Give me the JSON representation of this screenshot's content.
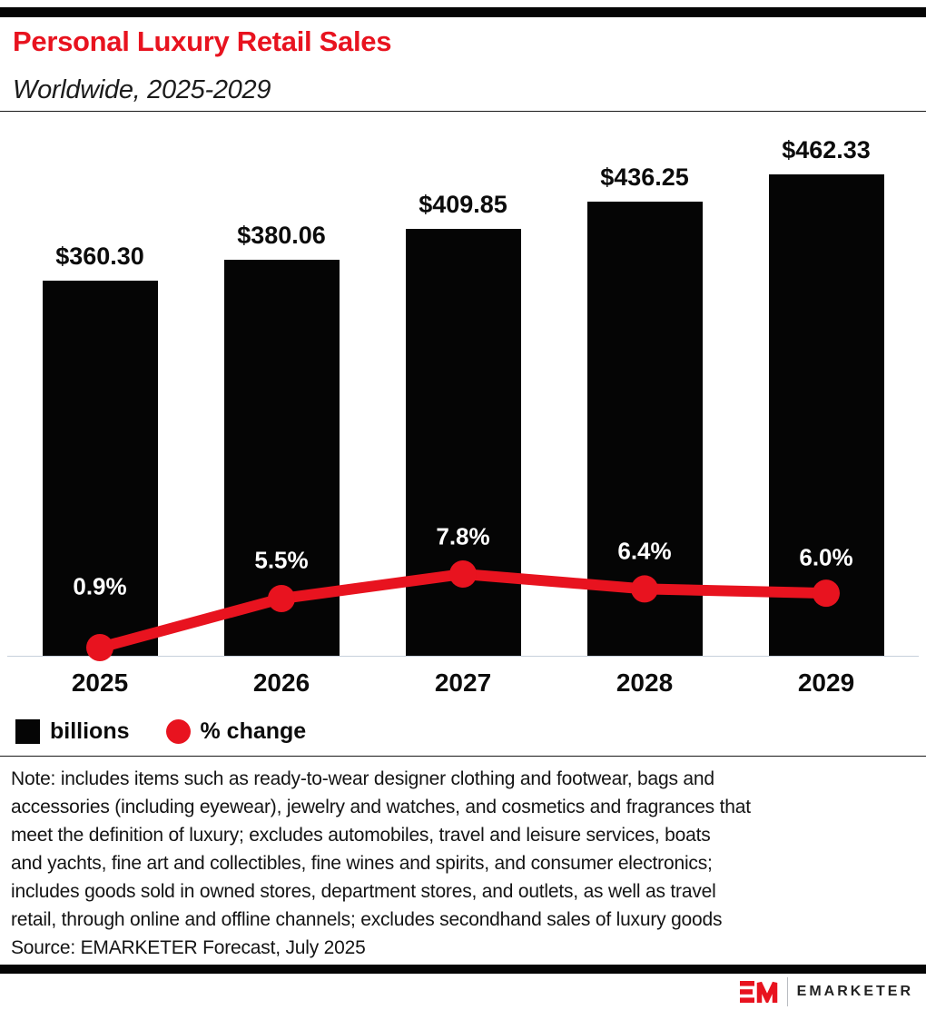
{
  "header": {
    "title": "Personal Luxury Retail Sales",
    "subtitle": "Worldwide, 2025-2029"
  },
  "chart_data": {
    "type": "bar",
    "combo": true,
    "categories": [
      "2025",
      "2026",
      "2027",
      "2028",
      "2029"
    ],
    "series": [
      {
        "name": "billions",
        "type": "bar",
        "values": [
          360.3,
          380.06,
          409.85,
          436.25,
          462.33
        ],
        "labels": [
          "$360.30",
          "$380.06",
          "$409.85",
          "$436.25",
          "$462.33"
        ],
        "color": "#050505"
      },
      {
        "name": "% change",
        "type": "line",
        "values": [
          0.9,
          5.5,
          7.8,
          6.4,
          6.0
        ],
        "labels": [
          "0.9%",
          "5.5%",
          "7.8%",
          "6.4%",
          "6.0%"
        ],
        "color": "#E8131F"
      }
    ],
    "title": "Personal Luxury Retail Sales",
    "subtitle": "Worldwide, 2025-2029",
    "xlabel": "",
    "ylabel": "",
    "bar_axis": {
      "min": 0
    },
    "grid": false,
    "legend_position": "bottom-left"
  },
  "legend": {
    "items": [
      {
        "label": "billions",
        "swatch": "black-square"
      },
      {
        "label": "% change",
        "swatch": "red-circle"
      }
    ]
  },
  "note": {
    "lines": [
      "Note: includes items such as ready-to-wear designer clothing and footwear, bags and",
      "accessories (including eyewear), jewelry and watches, and cosmetics and fragrances that",
      "meet the definition of luxury; excludes automobiles, travel and leisure services, boats",
      "and yachts, fine art and collectibles, fine wines and spirits, and consumer electronics;",
      "includes goods sold in owned stores, department stores, and outlets, as well as travel",
      "retail, through online and offline channels; excludes secondhand sales of luxury goods"
    ],
    "source": "Source: EMARKETER Forecast, July 2025"
  },
  "footer": {
    "brand": "EMARKETER"
  },
  "colors": {
    "accent_red": "#E8131F",
    "bar_black": "#050505",
    "axis_line": "#C7D0DC"
  }
}
